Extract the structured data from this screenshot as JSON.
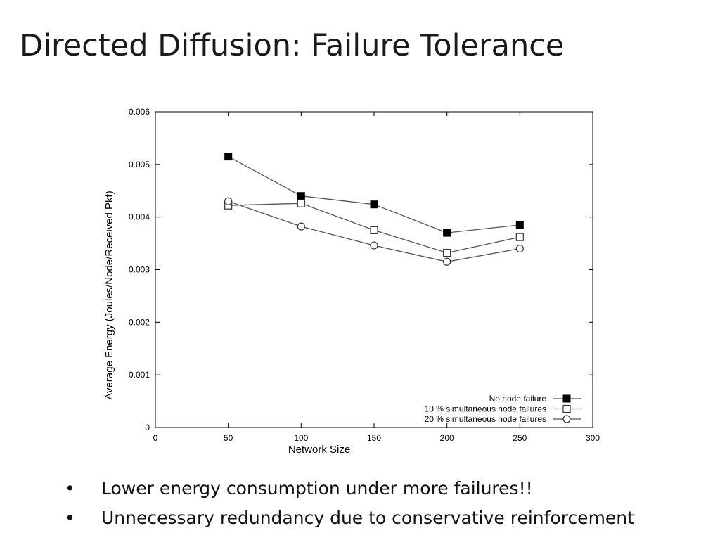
{
  "slide": {
    "title": "Directed Diffusion: Failure Tolerance",
    "bullets": [
      "Lower energy consumption under more failures!!",
      "Unnecessary redundancy due to conservative reinforcement"
    ],
    "bullet_symbol": "•"
  },
  "chart_data": {
    "type": "line",
    "title": "",
    "xlabel": "Network Size",
    "ylabel": "Average Energy (Joules/Node/Received Pkt)",
    "xlim": [
      0,
      300
    ],
    "ylim": [
      0,
      0.006
    ],
    "x_ticks": [
      "0",
      "50",
      "100",
      "150",
      "200",
      "250",
      "300"
    ],
    "y_ticks": [
      "0",
      "0.001",
      "0.002",
      "0.003",
      "0.004",
      "0.005",
      "0.006"
    ],
    "x_tick_values": [
      0,
      50,
      100,
      150,
      200,
      250,
      300
    ],
    "y_tick_values": [
      0,
      0.001,
      0.002,
      0.003,
      0.004,
      0.005,
      0.006
    ],
    "grid": false,
    "legend_position": "bottom-right",
    "line_color": "#555555",
    "series": [
      {
        "name": "No node failure",
        "marker": "filled-square",
        "x": [
          50,
          100,
          150,
          200,
          250
        ],
        "y": [
          0.00515,
          0.0044,
          0.00424,
          0.0037,
          0.00385
        ]
      },
      {
        "name": "10 % simultaneous node failures",
        "marker": "open-square",
        "x": [
          50,
          100,
          150,
          200,
          250
        ],
        "y": [
          0.00422,
          0.00426,
          0.00375,
          0.00332,
          0.00362
        ]
      },
      {
        "name": "20 % simultaneous node failures",
        "marker": "open-circle",
        "x": [
          50,
          100,
          150,
          200,
          250
        ],
        "y": [
          0.0043,
          0.00382,
          0.00346,
          0.00315,
          0.0034
        ]
      }
    ]
  }
}
